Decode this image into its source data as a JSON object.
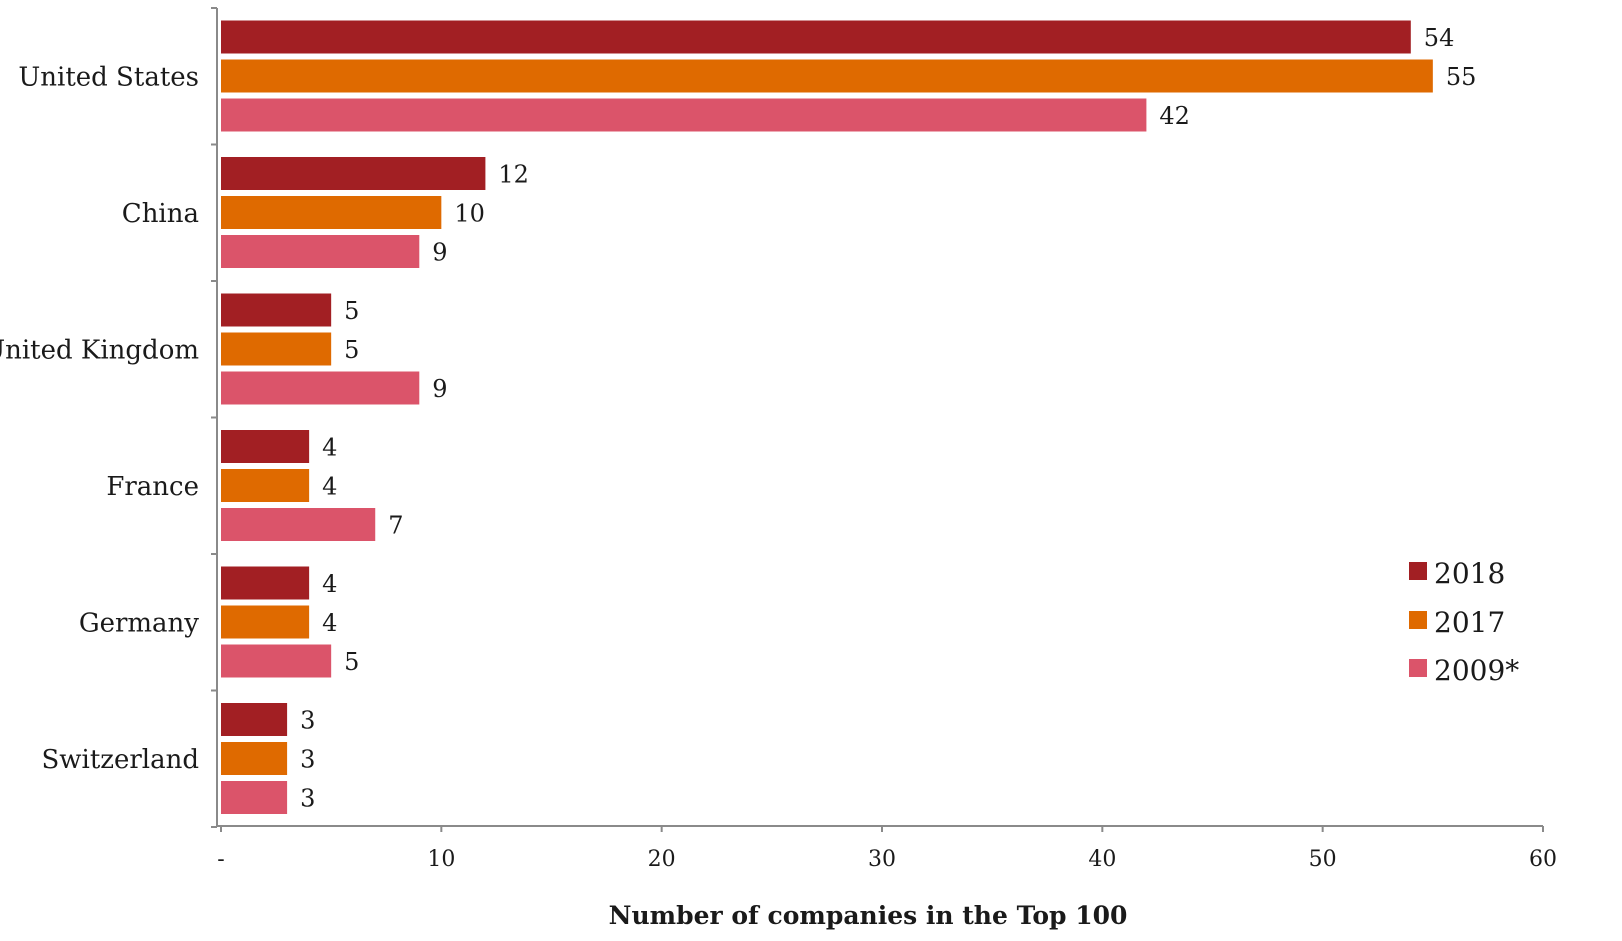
{
  "chart_data": {
    "type": "bar",
    "orientation": "horizontal",
    "categories": [
      "United States",
      "China",
      "United Kingdom",
      "France",
      "Germany",
      "Switzerland"
    ],
    "series": [
      {
        "name": "2018",
        "color": "#a21f23",
        "values": [
          54,
          12,
          5,
          4,
          4,
          3
        ]
      },
      {
        "name": "2017",
        "color": "#df6a00",
        "values": [
          55,
          10,
          5,
          4,
          4,
          3
        ]
      },
      {
        "name": "2009*",
        "color": "#db546a",
        "values": [
          42,
          9,
          9,
          7,
          5,
          3
        ]
      }
    ],
    "xlabel": "Number of companies in the Top 100",
    "xlim": [
      0,
      60
    ],
    "xticks": [
      0,
      10,
      20,
      30,
      40,
      50,
      60
    ],
    "xtick_labels": [
      "-",
      "10",
      "20",
      "30",
      "40",
      "50",
      "60"
    ],
    "grid": false,
    "legend_position": "right"
  }
}
